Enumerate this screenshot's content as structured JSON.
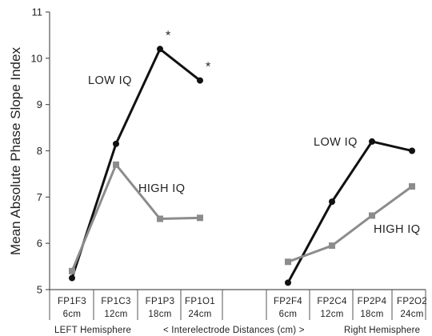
{
  "chart_data": {
    "type": "line",
    "ylabel": "Mean Absolute Phase Slope Index",
    "ylim": [
      5,
      11
    ],
    "yticks": [
      "5",
      "6",
      "7",
      "8",
      "9",
      "10",
      "11"
    ],
    "grid": false,
    "categories": [
      {
        "code": "FP1F3",
        "dist": "6cm"
      },
      {
        "code": "FP1C3",
        "dist": "12cm"
      },
      {
        "code": "FP1P3",
        "dist": "18cm"
      },
      {
        "code": "FP1O1",
        "dist": "24cm"
      },
      {
        "code": "FP2F4",
        "dist": "6cm"
      },
      {
        "code": "FP2C4",
        "dist": "12cm"
      },
      {
        "code": "FP2P4",
        "dist": "18cm"
      },
      {
        "code": "FP2O2",
        "dist": "24cm"
      }
    ],
    "footer": {
      "left": "LEFT  Hemisphere",
      "center": "< Interelectrode Distances (cm) >",
      "right": "Right Hemisphere"
    },
    "series": [
      {
        "name": "LOW IQ",
        "color": "#111111",
        "marker": "circle",
        "groups": [
          {
            "start": 0,
            "values": [
              5.25,
              8.15,
              10.2,
              9.52
            ]
          },
          {
            "start": 4,
            "values": [
              5.15,
              6.9,
              8.2,
              8.0
            ]
          }
        ],
        "labels": [
          "LOW IQ",
          "LOW IQ"
        ]
      },
      {
        "name": "HIGH IQ",
        "color": "#8c8c8c",
        "marker": "square",
        "groups": [
          {
            "start": 0,
            "values": [
              5.4,
              7.7,
              6.53,
              6.55
            ]
          },
          {
            "start": 4,
            "values": [
              5.6,
              5.95,
              6.6,
              7.23
            ]
          }
        ],
        "labels": [
          "HIGH IQ",
          "HIGH IQ"
        ]
      }
    ],
    "annotations": [
      {
        "text": "*",
        "category": 2,
        "value": 10.2
      },
      {
        "text": "*",
        "category": 3,
        "value": 9.52
      }
    ]
  }
}
